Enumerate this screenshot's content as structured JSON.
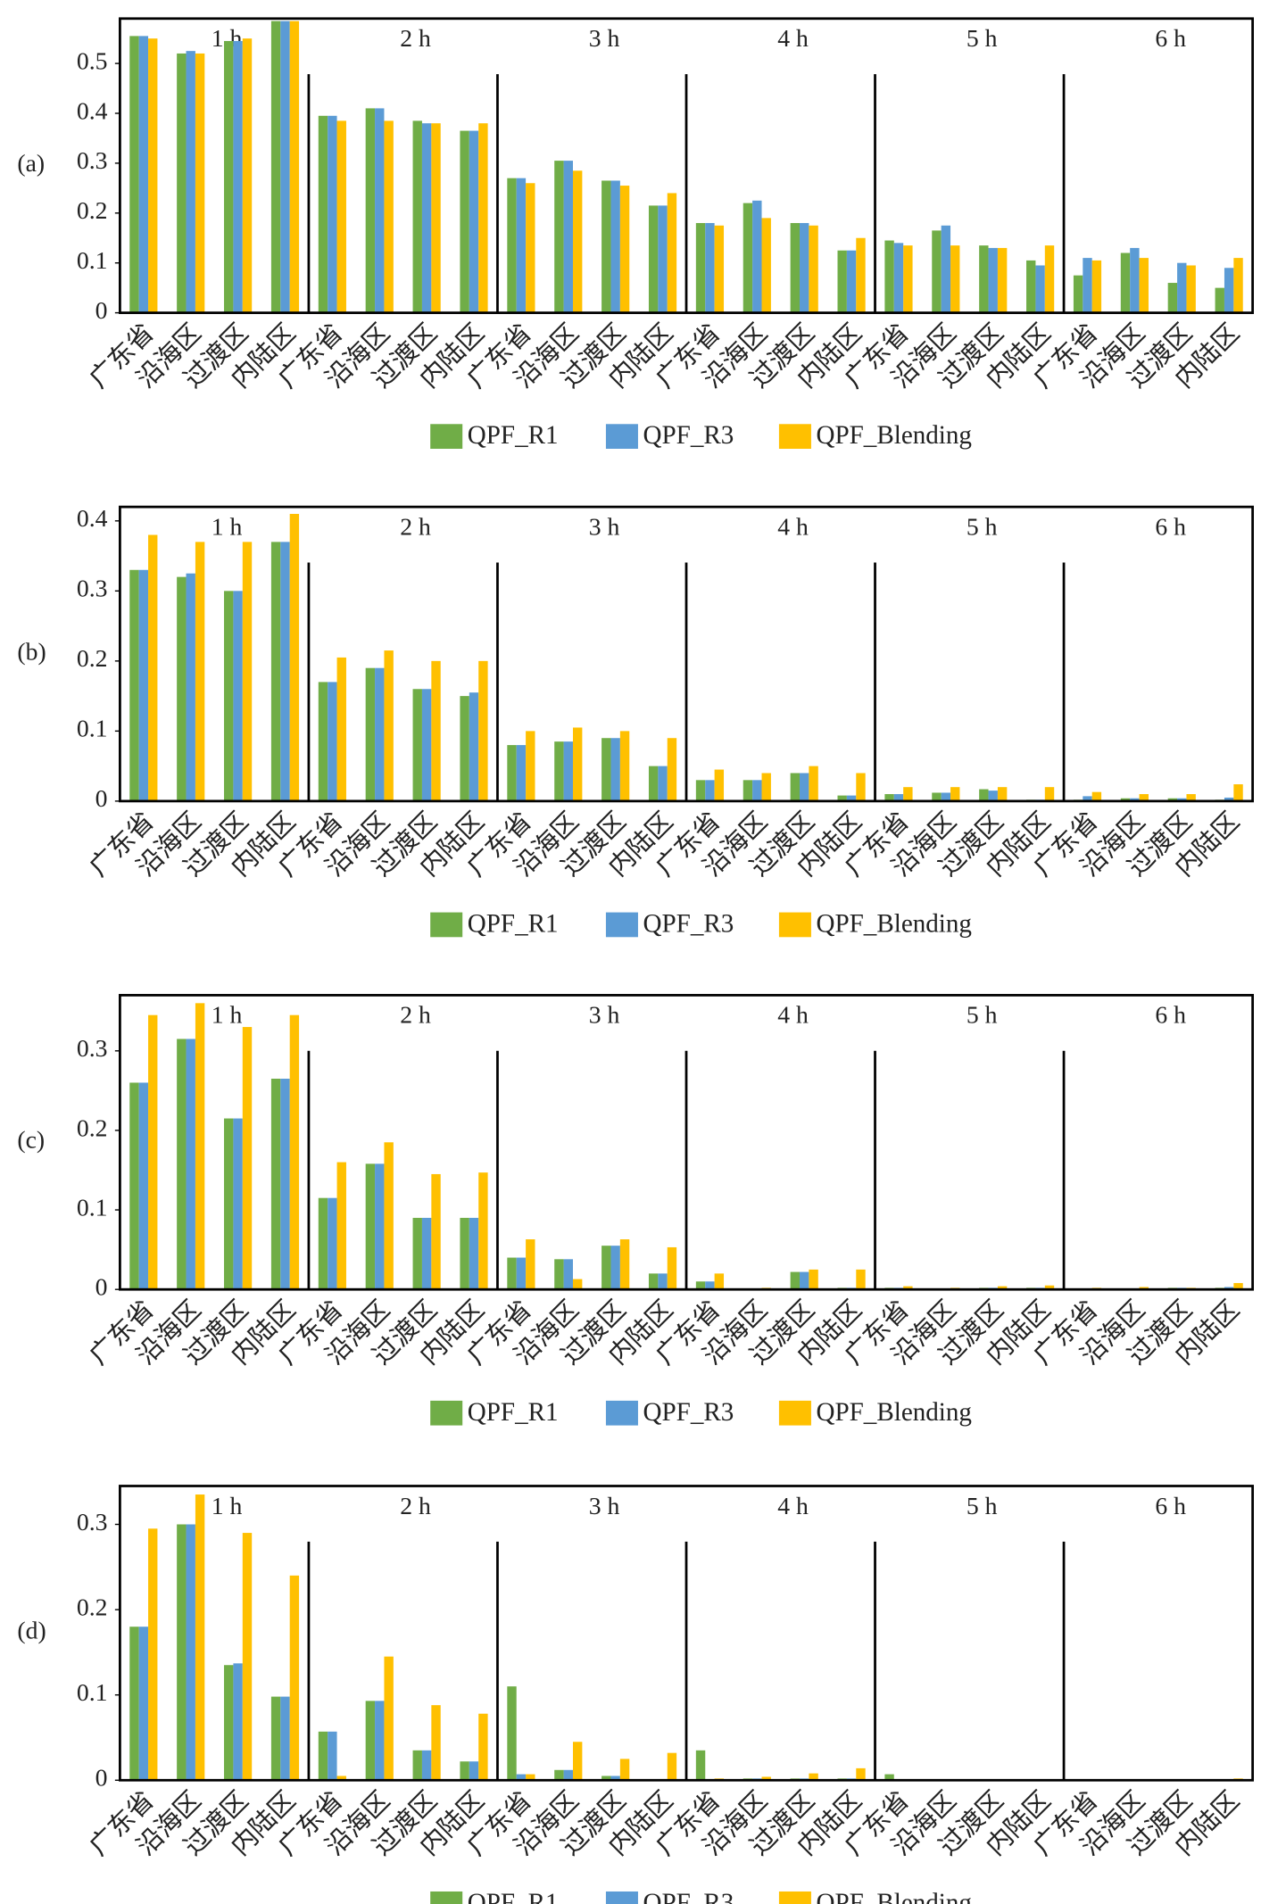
{
  "chart_data": [
    {
      "type": "bar",
      "panel_label": "(a)",
      "groups": [
        "1 h",
        "2 h",
        "3 h",
        "4 h",
        "5 h",
        "6 h"
      ],
      "categories": [
        "广东省",
        "沿海区",
        "过渡区",
        "内陆区",
        "广东省",
        "沿海区",
        "过渡区",
        "内陆区",
        "广东省",
        "沿海区",
        "过渡区",
        "内陆区",
        "广东省",
        "沿海区",
        "过渡区",
        "内陆区",
        "广东省",
        "沿海区",
        "过渡区",
        "内陆区",
        "广东省",
        "沿海区",
        "过渡区",
        "内陆区"
      ],
      "series": [
        {
          "name": "QPF_R1",
          "color": "#70ad47",
          "values": [
            0.555,
            0.52,
            0.545,
            0.585,
            0.395,
            0.41,
            0.385,
            0.365,
            0.27,
            0.305,
            0.265,
            0.215,
            0.18,
            0.22,
            0.18,
            0.125,
            0.145,
            0.165,
            0.135,
            0.105,
            0.075,
            0.12,
            0.06,
            0.05
          ]
        },
        {
          "name": "QPF_R3",
          "color": "#5b9bd5",
          "values": [
            0.555,
            0.525,
            0.545,
            0.585,
            0.395,
            0.41,
            0.38,
            0.365,
            0.27,
            0.305,
            0.265,
            0.215,
            0.18,
            0.225,
            0.18,
            0.125,
            0.14,
            0.175,
            0.13,
            0.095,
            0.11,
            0.13,
            0.1,
            0.09
          ]
        },
        {
          "name": "QPF_Blending",
          "color": "#ffc000",
          "values": [
            0.55,
            0.52,
            0.55,
            0.585,
            0.385,
            0.385,
            0.38,
            0.38,
            0.26,
            0.285,
            0.255,
            0.24,
            0.175,
            0.19,
            0.175,
            0.15,
            0.135,
            0.135,
            0.13,
            0.135,
            0.105,
            0.11,
            0.095,
            0.11
          ]
        }
      ],
      "ylim": [
        0,
        0.59
      ],
      "yticks": [
        0,
        0.1,
        0.2,
        0.3,
        0.4,
        0.5
      ]
    },
    {
      "type": "bar",
      "panel_label": "(b)",
      "groups": [
        "1 h",
        "2 h",
        "3 h",
        "4 h",
        "5 h",
        "6 h"
      ],
      "categories": [
        "广东省",
        "沿海区",
        "过渡区",
        "内陆区",
        "广东省",
        "沿海区",
        "过渡区",
        "内陆区",
        "广东省",
        "沿海区",
        "过渡区",
        "内陆区",
        "广东省",
        "沿海区",
        "过渡区",
        "内陆区",
        "广东省",
        "沿海区",
        "过渡区",
        "内陆区",
        "广东省",
        "沿海区",
        "过渡区",
        "内陆区"
      ],
      "series": [
        {
          "name": "QPF_R1",
          "color": "#70ad47",
          "values": [
            0.33,
            0.32,
            0.3,
            0.37,
            0.17,
            0.19,
            0.16,
            0.15,
            0.08,
            0.085,
            0.09,
            0.05,
            0.03,
            0.03,
            0.04,
            0.008,
            0.01,
            0.012,
            0.017,
            0.002,
            0.002,
            0.004,
            0.004,
            0.002
          ]
        },
        {
          "name": "QPF_R3",
          "color": "#5b9bd5",
          "values": [
            0.33,
            0.325,
            0.3,
            0.37,
            0.17,
            0.19,
            0.16,
            0.155,
            0.08,
            0.085,
            0.09,
            0.05,
            0.03,
            0.03,
            0.04,
            0.008,
            0.01,
            0.012,
            0.015,
            0.002,
            0.007,
            0.004,
            0.004,
            0.005
          ]
        },
        {
          "name": "QPF_Blending",
          "color": "#ffc000",
          "values": [
            0.38,
            0.37,
            0.37,
            0.41,
            0.205,
            0.215,
            0.2,
            0.2,
            0.1,
            0.105,
            0.1,
            0.09,
            0.045,
            0.04,
            0.05,
            0.04,
            0.02,
            0.02,
            0.02,
            0.02,
            0.013,
            0.01,
            0.01,
            0.024
          ]
        }
      ],
      "ylim": [
        0,
        0.42
      ],
      "yticks": [
        0,
        0.1,
        0.2,
        0.3,
        0.4
      ]
    },
    {
      "type": "bar",
      "panel_label": "(c)",
      "groups": [
        "1 h",
        "2 h",
        "3 h",
        "4 h",
        "5 h",
        "6 h"
      ],
      "categories": [
        "广东省",
        "沿海区",
        "过渡区",
        "内陆区",
        "广东省",
        "沿海区",
        "过渡区",
        "内陆区",
        "广东省",
        "沿海区",
        "过渡区",
        "内陆区",
        "广东省",
        "沿海区",
        "过渡区",
        "内陆区",
        "广东省",
        "沿海区",
        "过渡区",
        "内陆区",
        "广东省",
        "沿海区",
        "过渡区",
        "内陆区"
      ],
      "series": [
        {
          "name": "QPF_R1",
          "color": "#70ad47",
          "values": [
            0.26,
            0.315,
            0.215,
            0.265,
            0.115,
            0.158,
            0.09,
            0.09,
            0.04,
            0.038,
            0.055,
            0.02,
            0.01,
            0.001,
            0.022,
            0.002,
            0.002,
            0.001,
            0.002,
            0.002,
            0.001,
            0.001,
            0.002,
            0.002
          ]
        },
        {
          "name": "QPF_R3",
          "color": "#5b9bd5",
          "values": [
            0.26,
            0.315,
            0.215,
            0.265,
            0.115,
            0.158,
            0.09,
            0.09,
            0.04,
            0.038,
            0.055,
            0.02,
            0.01,
            0.001,
            0.022,
            0.002,
            0.002,
            0.001,
            0.002,
            0.002,
            0.001,
            0.001,
            0.002,
            0.003
          ]
        },
        {
          "name": "QPF_Blending",
          "color": "#ffc000",
          "values": [
            0.345,
            0.36,
            0.33,
            0.345,
            0.16,
            0.185,
            0.145,
            0.147,
            0.063,
            0.013,
            0.063,
            0.053,
            0.02,
            0.002,
            0.025,
            0.025,
            0.004,
            0.002,
            0.004,
            0.005,
            0.002,
            0.003,
            0.002,
            0.008
          ]
        }
      ],
      "ylim": [
        0,
        0.37
      ],
      "yticks": [
        0,
        0.1,
        0.2,
        0.3
      ]
    },
    {
      "type": "bar",
      "panel_label": "(d)",
      "groups": [
        "1 h",
        "2 h",
        "3 h",
        "4 h",
        "5 h",
        "6 h"
      ],
      "categories": [
        "广东省",
        "沿海区",
        "过渡区",
        "内陆区",
        "广东省",
        "沿海区",
        "过渡区",
        "内陆区",
        "广东省",
        "沿海区",
        "过渡区",
        "内陆区",
        "广东省",
        "沿海区",
        "过渡区",
        "内陆区",
        "广东省",
        "沿海区",
        "过渡区",
        "内陆区",
        "广东省",
        "沿海区",
        "过渡区",
        "内陆区"
      ],
      "series": [
        {
          "name": "QPF_R1",
          "color": "#70ad47",
          "values": [
            0.18,
            0.3,
            0.135,
            0.098,
            0.057,
            0.093,
            0.035,
            0.022,
            0.11,
            0.012,
            0.005,
            0.001,
            0.035,
            0.002,
            0.002,
            0.002,
            0.007,
            0,
            0,
            0.001,
            0.001,
            0,
            0,
            0.001
          ]
        },
        {
          "name": "QPF_R3",
          "color": "#5b9bd5",
          "values": [
            0.18,
            0.3,
            0.137,
            0.098,
            0.057,
            0.093,
            0.035,
            0.022,
            0.007,
            0.012,
            0.005,
            0.001,
            0.001,
            0.002,
            0.002,
            0.002,
            0,
            0,
            0,
            0.001,
            0.001,
            0,
            0,
            0.001
          ]
        },
        {
          "name": "QPF_Blending",
          "color": "#ffc000",
          "values": [
            0.295,
            0.335,
            0.29,
            0.24,
            0.005,
            0.145,
            0.088,
            0.078,
            0.007,
            0.045,
            0.025,
            0.032,
            0.002,
            0.004,
            0.008,
            0.014,
            0,
            0,
            0,
            0.001,
            0.001,
            0,
            0,
            0.002
          ]
        }
      ],
      "ylim": [
        0,
        0.345
      ],
      "yticks": [
        0,
        0.1,
        0.2,
        0.3
      ]
    }
  ]
}
